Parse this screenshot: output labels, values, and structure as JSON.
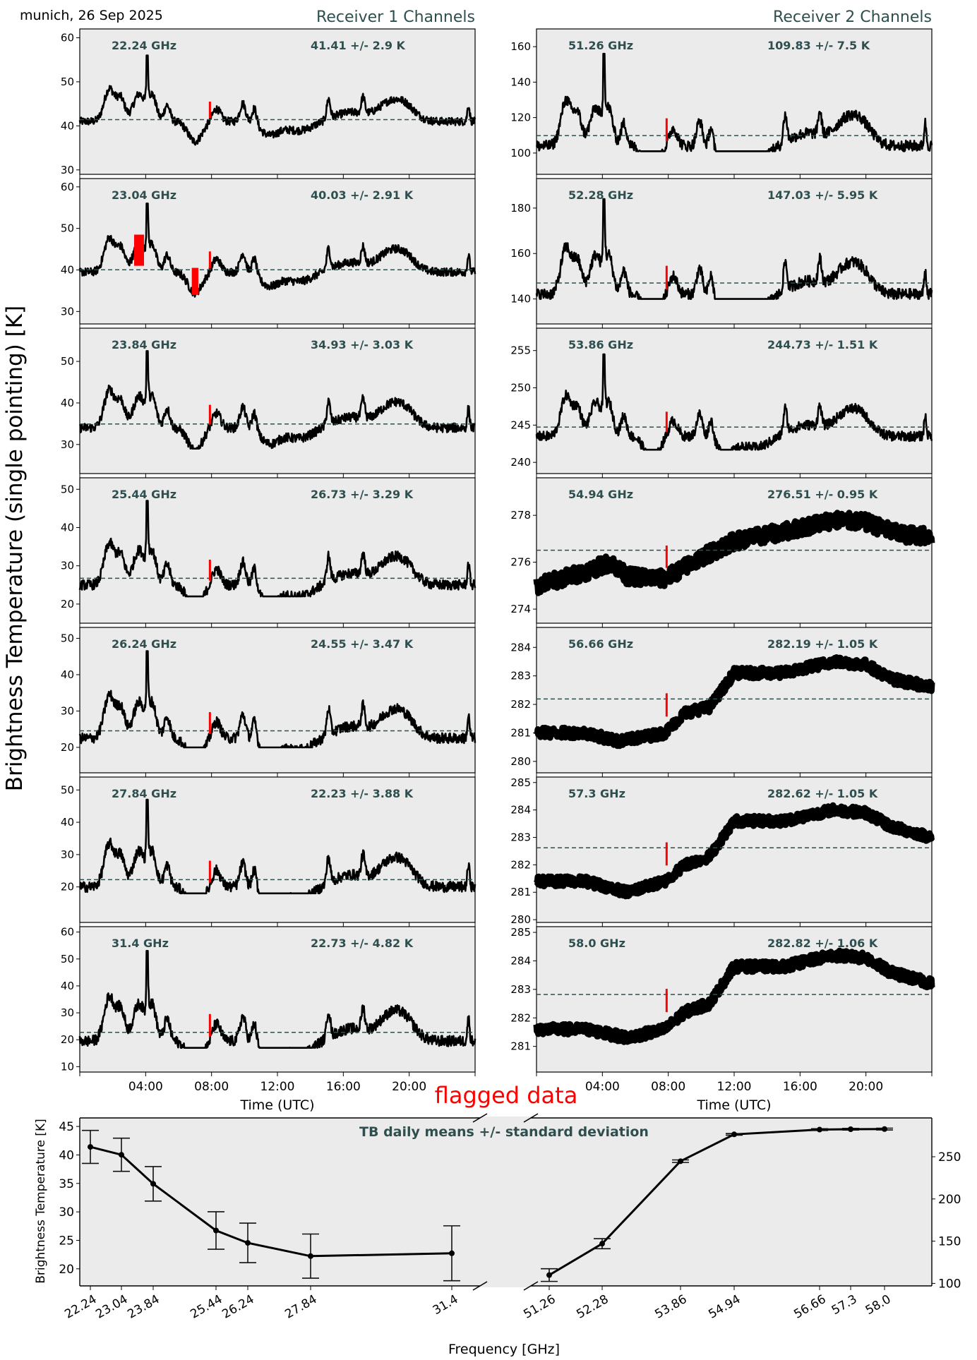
{
  "header": {
    "location_date": "munich, 26 Sep 2025",
    "receiver1_title": "Receiver 1 Channels",
    "receiver2_title": "Receiver 2 Channels",
    "y_label": "Brightness Temperature (single pointing) [K]",
    "flagged_label": "flagged data"
  },
  "colors": {
    "panel_bg": "#ebebeb",
    "series": "#000000",
    "flagged": "#ff0000",
    "mean_line": "#2f4f4f",
    "label": "#2f4f4f"
  },
  "chart_data": [
    {
      "type": "line",
      "group": "receiver1",
      "xlabel": "Time (UTC)",
      "x_ticks": [
        "04:00",
        "08:00",
        "12:00",
        "16:00",
        "20:00"
      ],
      "x_range_hours": [
        0,
        24
      ],
      "panels": [
        {
          "freq_label": "22.24 GHz",
          "stats_label": "41.41 +/- 2.9 K",
          "mean": 41.41,
          "std": 2.9,
          "ylim": [
            29,
            62
          ],
          "yticks": [
            30,
            40,
            50,
            60
          ],
          "base": 41.0,
          "peak": 56,
          "dip": 34.5,
          "flag_hours": [
            7.9
          ],
          "flag_extra": []
        },
        {
          "freq_label": "23.04 GHz",
          "stats_label": "40.03 +/- 2.91 K",
          "mean": 40.03,
          "std": 2.91,
          "ylim": [
            27,
            62
          ],
          "yticks": [
            30,
            40,
            50,
            60
          ],
          "base": 39.5,
          "peak": 56,
          "dip": 33.5,
          "flag_hours": [
            7.9
          ],
          "flag_extra": [
            [
              3.3,
              3.9,
              41,
              48.5
            ],
            [
              6.8,
              7.2,
              34,
              40.5
            ]
          ]
        },
        {
          "freq_label": "23.84 GHz",
          "stats_label": "34.93 +/- 3.03 K",
          "mean": 34.93,
          "std": 3.03,
          "ylim": [
            23,
            58
          ],
          "yticks": [
            30,
            40,
            50
          ],
          "base": 34.0,
          "peak": 52.5,
          "dip": 29.0,
          "flag_hours": [
            7.9
          ],
          "flag_extra": []
        },
        {
          "freq_label": "25.44 GHz",
          "stats_label": "26.73 +/- 3.29 K",
          "mean": 26.73,
          "std": 3.29,
          "ylim": [
            15,
            53
          ],
          "yticks": [
            20,
            30,
            40,
            50
          ],
          "base": 25.0,
          "peak": 47,
          "dip": 22.0,
          "flag_hours": [
            7.9
          ],
          "flag_extra": []
        },
        {
          "freq_label": "26.24 GHz",
          "stats_label": "24.55 +/- 3.47 K",
          "mean": 24.55,
          "std": 3.47,
          "ylim": [
            13,
            53
          ],
          "yticks": [
            20,
            30,
            40,
            50
          ],
          "base": 22.5,
          "peak": 46.5,
          "dip": 20.0,
          "flag_hours": [
            7.9
          ],
          "flag_extra": []
        },
        {
          "freq_label": "27.84 GHz",
          "stats_label": "22.23 +/- 3.88 K",
          "mean": 22.23,
          "std": 3.88,
          "ylim": [
            9,
            54
          ],
          "yticks": [
            20,
            30,
            40,
            50
          ],
          "base": 20.0,
          "peak": 47,
          "dip": 18.0,
          "flag_hours": [
            7.9
          ],
          "flag_extra": []
        },
        {
          "freq_label": "31.4 GHz",
          "stats_label": "22.73 +/- 4.82 K",
          "mean": 22.73,
          "std": 4.82,
          "ylim": [
            8,
            62
          ],
          "yticks": [
            10,
            20,
            30,
            40,
            50,
            60
          ],
          "base": 19.5,
          "peak": 53,
          "dip": 17.0,
          "flag_hours": [
            7.9
          ],
          "flag_extra": []
        }
      ]
    },
    {
      "type": "line",
      "group": "receiver2",
      "xlabel": "Time (UTC)",
      "x_ticks": [
        "04:00",
        "08:00",
        "12:00",
        "16:00",
        "20:00"
      ],
      "x_range_hours": [
        0,
        24
      ],
      "panels": [
        {
          "freq_label": "51.26 GHz",
          "stats_label": "109.83 +/- 7.5 K",
          "mean": 109.83,
          "std": 7.5,
          "ylim": [
            88,
            170
          ],
          "yticks": [
            100,
            120,
            140,
            160
          ],
          "kind": "wet",
          "base": 104,
          "peak": 156,
          "dip": 101,
          "flag_hours": [
            7.9
          ]
        },
        {
          "freq_label": "52.28 GHz",
          "stats_label": "147.03 +/- 5.95 K",
          "mean": 147.03,
          "std": 5.95,
          "ylim": [
            129,
            193
          ],
          "yticks": [
            140,
            160,
            180
          ],
          "kind": "wet",
          "base": 142,
          "peak": 184,
          "dip": 140,
          "flag_hours": [
            7.9
          ]
        },
        {
          "freq_label": "53.86 GHz",
          "stats_label": "244.73 +/- 1.51 K",
          "mean": 244.73,
          "std": 1.51,
          "ylim": [
            238.5,
            258
          ],
          "yticks": [
            240,
            245,
            250,
            255
          ],
          "kind": "wet",
          "base": 243.5,
          "peak": 254.5,
          "dip": 241.7,
          "flag_hours": [
            7.9
          ]
        },
        {
          "freq_label": "54.94 GHz",
          "stats_label": "276.51 +/- 0.95 K",
          "mean": 276.51,
          "std": 0.95,
          "ylim": [
            273.4,
            279.6
          ],
          "yticks": [
            274,
            276,
            278
          ],
          "kind": "smooth",
          "profile": [
            [
              0,
              275.0
            ],
            [
              3,
              275.6
            ],
            [
              4.5,
              276.0
            ],
            [
              5.5,
              275.4
            ],
            [
              7.8,
              275.3
            ],
            [
              10,
              276.2
            ],
            [
              12,
              276.9
            ],
            [
              15,
              277.3
            ],
            [
              18,
              277.8
            ],
            [
              20,
              277.7
            ],
            [
              22,
              277.2
            ],
            [
              24,
              277.1
            ]
          ],
          "noise": 0.35,
          "flag_hours": [
            7.9
          ]
        },
        {
          "freq_label": "56.66 GHz",
          "stats_label": "282.19 +/- 1.05 K",
          "mean": 282.19,
          "std": 1.05,
          "ylim": [
            279.6,
            284.7
          ],
          "yticks": [
            280,
            281,
            282,
            283,
            284
          ],
          "kind": "smooth",
          "profile": [
            [
              0,
              281.0
            ],
            [
              3,
              281.0
            ],
            [
              5,
              280.7
            ],
            [
              7.8,
              281.0
            ],
            [
              9,
              281.7
            ],
            [
              10.5,
              281.9
            ],
            [
              12,
              283.1
            ],
            [
              15,
              283.1
            ],
            [
              18,
              283.5
            ],
            [
              20,
              283.4
            ],
            [
              21.5,
              282.9
            ],
            [
              24,
              282.6
            ]
          ],
          "noise": 0.18,
          "flag_hours": [
            7.9
          ]
        },
        {
          "freq_label": "57.3 GHz",
          "stats_label": "282.62 +/- 1.05 K",
          "mean": 282.62,
          "std": 1.05,
          "ylim": [
            279.9,
            285.2
          ],
          "yticks": [
            280,
            281,
            282,
            283,
            284,
            285
          ],
          "kind": "smooth",
          "profile": [
            [
              0,
              281.4
            ],
            [
              3,
              281.4
            ],
            [
              5.5,
              281.0
            ],
            [
              7.8,
              281.4
            ],
            [
              9,
              282.0
            ],
            [
              10.5,
              282.3
            ],
            [
              12,
              283.6
            ],
            [
              15,
              283.6
            ],
            [
              18,
              284.0
            ],
            [
              20,
              283.9
            ],
            [
              21.5,
              283.4
            ],
            [
              24,
              283.0
            ]
          ],
          "noise": 0.18,
          "flag_hours": [
            7.9
          ]
        },
        {
          "freq_label": "58.0 GHz",
          "stats_label": "282.82 +/- 1.06 K",
          "mean": 282.82,
          "std": 1.06,
          "ylim": [
            280.1,
            285.2
          ],
          "yticks": [
            281,
            282,
            283,
            284,
            285
          ],
          "kind": "smooth",
          "profile": [
            [
              0,
              281.6
            ],
            [
              3,
              281.6
            ],
            [
              5.5,
              281.3
            ],
            [
              7.8,
              281.6
            ],
            [
              9,
              282.2
            ],
            [
              10.5,
              282.5
            ],
            [
              12,
              283.8
            ],
            [
              15,
              283.8
            ],
            [
              18,
              284.2
            ],
            [
              20,
              284.1
            ],
            [
              21.5,
              283.6
            ],
            [
              24,
              283.2
            ]
          ],
          "noise": 0.18,
          "flag_hours": [
            7.9
          ]
        }
      ]
    },
    {
      "type": "line",
      "group": "daily_means",
      "title": "TB daily means +/- standard deviation",
      "xlabel": "Frequency [GHz]",
      "ylabel": "Brightness Temperature [K]",
      "left": {
        "x": [
          22.24,
          23.04,
          23.84,
          25.44,
          26.24,
          27.84,
          31.4
        ],
        "x_tick_labels": [
          "22.24",
          "23.04",
          "23.84",
          "25.44",
          "26.24",
          "27.84",
          "31.4"
        ],
        "y": [
          41.41,
          40.03,
          34.93,
          26.73,
          24.55,
          22.23,
          22.73
        ],
        "err": [
          2.9,
          2.91,
          3.03,
          3.29,
          3.47,
          3.88,
          4.82
        ],
        "ylim": [
          17,
          46.5
        ],
        "yticks": [
          20,
          25,
          30,
          35,
          40,
          45
        ]
      },
      "right": {
        "x": [
          51.26,
          52.28,
          53.86,
          54.94,
          56.66,
          57.3,
          58.0
        ],
        "x_tick_labels": [
          "51.26",
          "52.28",
          "53.86",
          "54.94",
          "56.66",
          "57.3",
          "58.0"
        ],
        "y": [
          109.83,
          147.03,
          244.73,
          276.51,
          282.19,
          282.62,
          282.82
        ],
        "err": [
          7.5,
          5.95,
          1.51,
          0.95,
          1.05,
          1.05,
          1.06
        ],
        "ylim": [
          97,
          296
        ],
        "yticks": [
          100,
          150,
          200,
          250
        ]
      }
    }
  ]
}
